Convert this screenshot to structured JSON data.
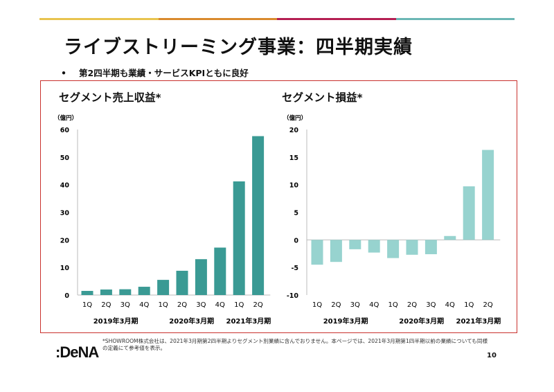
{
  "header": {
    "title": "ライブストリーミング事業：四半期実績",
    "bullet": "第2四半期も業績・サービスKPIともに良好",
    "bullet_mark": "•",
    "bar_colors": [
      "#e8c34e",
      "#d98a2e",
      "#b51f52",
      "#6bb7b5"
    ]
  },
  "chart_data": [
    {
      "type": "bar",
      "title": "セグメント売上収益*",
      "ylabel": "（億円）",
      "ylim": [
        0,
        60
      ],
      "yticks": [
        0,
        10,
        20,
        30,
        40,
        50,
        60
      ],
      "categories": [
        "1Q",
        "2Q",
        "3Q",
        "4Q",
        "1Q",
        "2Q",
        "3Q",
        "4Q",
        "1Q",
        "2Q"
      ],
      "groups": [
        {
          "label": "2019年3月期",
          "from": 0,
          "to": 3
        },
        {
          "label": "2020年3月期",
          "from": 4,
          "to": 7
        },
        {
          "label": "2021年3月期",
          "from": 8,
          "to": 9
        }
      ],
      "values": [
        1.5,
        2.0,
        2.1,
        3.0,
        5.5,
        8.8,
        13.0,
        17.2,
        41.2,
        57.6
      ],
      "color": "#3a9a94"
    },
    {
      "type": "bar",
      "title": "セグメント損益*",
      "ylabel": "（億円）",
      "ylim": [
        -10,
        20
      ],
      "yticks": [
        -10,
        -5,
        0,
        5,
        10,
        15,
        20
      ],
      "categories": [
        "1Q",
        "2Q",
        "3Q",
        "4Q",
        "1Q",
        "2Q",
        "3Q",
        "4Q",
        "1Q",
        "2Q"
      ],
      "groups": [
        {
          "label": "2019年3月期",
          "from": 0,
          "to": 3
        },
        {
          "label": "2020年3月期",
          "from": 4,
          "to": 7
        },
        {
          "label": "2021年3月期",
          "from": 8,
          "to": 9
        }
      ],
      "values": [
        -4.5,
        -4.0,
        -1.7,
        -2.3,
        -3.3,
        -2.7,
        -2.6,
        0.7,
        9.7,
        16.3
      ],
      "color": "#97d3cf"
    }
  ],
  "footer": {
    "logo": ":DeNA",
    "note": "*SHOWROOM株式会社は、2021年3月期第2四半期よりセグメント別業績に含んでおりません。本ページでは、2021年3月期第1四半期以前の業績についても同様の定義にて参考値を表示。",
    "page": "10"
  }
}
